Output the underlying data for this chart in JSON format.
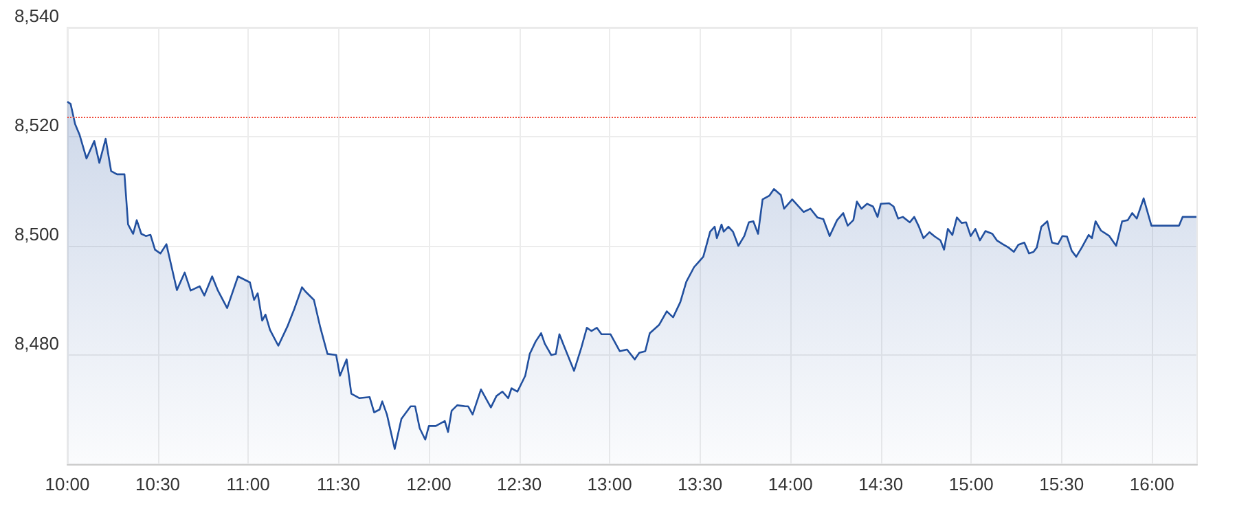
{
  "chart_data": {
    "type": "area",
    "x": [
      10.0,
      10.018,
      10.043,
      10.068,
      10.106,
      10.149,
      10.177,
      10.212,
      10.242,
      10.275,
      10.316,
      10.336,
      10.364,
      10.384,
      10.409,
      10.434,
      10.46,
      10.485,
      10.515,
      10.548,
      10.606,
      10.649,
      10.682,
      10.732,
      10.758,
      10.801,
      10.833,
      10.884,
      10.944,
      11.01,
      11.033,
      11.053,
      11.078,
      11.096,
      11.121,
      11.167,
      11.217,
      11.255,
      11.298,
      11.318,
      11.364,
      11.399,
      11.439,
      11.487,
      11.508,
      11.545,
      11.571,
      11.616,
      11.672,
      11.697,
      11.727,
      11.742,
      11.768,
      11.811,
      11.848,
      11.899,
      11.924,
      11.949,
      11.98,
      12.0,
      12.038,
      12.088,
      12.106,
      12.126,
      12.157,
      12.202,
      12.217,
      12.242,
      12.288,
      12.343,
      12.374,
      12.407,
      12.439,
      12.457,
      12.49,
      12.533,
      12.558,
      12.591,
      12.621,
      12.641,
      12.677,
      12.702,
      12.722,
      12.747,
      12.803,
      12.843,
      12.874,
      12.899,
      12.929,
      12.955,
      13.005,
      13.056,
      13.096,
      13.139,
      13.164,
      13.197,
      13.222,
      13.273,
      13.316,
      13.351,
      13.391,
      13.424,
      13.467,
      13.518,
      13.556,
      13.581,
      13.593,
      13.619,
      13.631,
      13.657,
      13.682,
      13.712,
      13.745,
      13.77,
      13.795,
      13.821,
      13.846,
      13.884,
      13.909,
      13.947,
      13.965,
      14.01,
      14.073,
      14.111,
      14.149,
      14.182,
      14.217,
      14.258,
      14.292,
      14.317,
      14.348,
      14.368,
      14.393,
      14.424,
      14.457,
      14.482,
      14.5,
      14.546,
      14.571,
      14.596,
      14.622,
      14.66,
      14.685,
      14.711,
      14.736,
      14.769,
      14.799,
      14.83,
      14.85,
      14.871,
      14.896,
      14.921,
      14.947,
      14.972,
      14.997,
      15.023,
      15.048,
      15.079,
      15.117,
      15.142,
      15.175,
      15.206,
      15.236,
      15.261,
      15.294,
      15.32,
      15.345,
      15.363,
      15.388,
      15.421,
      15.447,
      15.48,
      15.505,
      15.53,
      15.556,
      15.581,
      15.612,
      15.65,
      15.668,
      15.688,
      15.718,
      15.764,
      15.802,
      15.835,
      15.866,
      15.891,
      15.916,
      15.954,
      15.997,
      16.15,
      16.17,
      16.246
    ],
    "series": [
      {
        "color": "#22509f",
        "values": [
          8526.4,
          8526,
          8522.3,
          8520.3,
          8516,
          8519.2,
          8515.2,
          8519.6,
          8513.7,
          8513.1,
          8513.1,
          8503.9,
          8502.2,
          8504.7,
          8502.2,
          8501.8,
          8502,
          8499.3,
          8498.6,
          8500.3,
          8491.9,
          8495.1,
          8491.8,
          8492.6,
          8490.9,
          8494.4,
          8491.8,
          8488.6,
          8494.4,
          8493.3,
          8490.1,
          8491.3,
          8486.3,
          8487.4,
          8484.6,
          8481.7,
          8485.2,
          8488.4,
          8492.4,
          8491.6,
          8490.1,
          8485.1,
          8480.2,
          8480,
          8476.2,
          8479.2,
          8472.9,
          8472.1,
          8472.3,
          8469.5,
          8470,
          8471.5,
          8469.1,
          8462.8,
          8468.3,
          8470.6,
          8470.6,
          8466.6,
          8464.5,
          8467,
          8467,
          8467.9,
          8465.9,
          8469.8,
          8470.8,
          8470.6,
          8470.6,
          8469.1,
          8473.7,
          8470.4,
          8472.5,
          8473.3,
          8472.1,
          8473.9,
          8473.3,
          8476.2,
          8480.2,
          8482.5,
          8484,
          8482.1,
          8480,
          8480.2,
          8483.8,
          8481.7,
          8477.1,
          8481.3,
          8485,
          8484.4,
          8485,
          8483.8,
          8483.8,
          8480.7,
          8481,
          8479.2,
          8480.4,
          8480.7,
          8484,
          8485.5,
          8488,
          8486.9,
          8489.7,
          8493.4,
          8496.1,
          8498,
          8502.6,
          8503.5,
          8501.4,
          8503.9,
          8502.6,
          8503.5,
          8502.6,
          8500,
          8501.8,
          8504.3,
          8504.5,
          8502.2,
          8508.5,
          8509.2,
          8510.4,
          8509.3,
          8506.8,
          8508.5,
          8506.2,
          8506.8,
          8505.2,
          8504.9,
          8501.8,
          8504.7,
          8506,
          8503.7,
          8504.7,
          8508.1,
          8506.8,
          8507.7,
          8507.2,
          8505.3,
          8507.7,
          8507.8,
          8507.2,
          8505,
          8505.3,
          8504.3,
          8505.3,
          8503.5,
          8501.4,
          8502.5,
          8501.7,
          8501,
          8499.3,
          8503.1,
          8502,
          8505.2,
          8504.2,
          8504.3,
          8501.8,
          8503.1,
          8501,
          8502.7,
          8502.2,
          8501,
          8500.3,
          8499.7,
          8498.9,
          8500.2,
          8500.6,
          8498.6,
          8498.9,
          8499.7,
          8503.5,
          8504.5,
          8500.6,
          8500.3,
          8501.8,
          8501.7,
          8499.1,
          8498,
          8499.7,
          8502,
          8501.4,
          8504.5,
          8502.8,
          8501.8,
          8500,
          8504.5,
          8504.7,
          8506,
          8505,
          8508.7,
          8503.7,
          8503.7,
          8505.3,
          8505.3
        ]
      }
    ],
    "xlim": [
      10,
      16.25
    ],
    "xticks": [
      {
        "value": 10,
        "label": "10:00"
      },
      {
        "value": 10.5,
        "label": "10:30"
      },
      {
        "value": 11,
        "label": "11:00"
      },
      {
        "value": 11.5,
        "label": "11:30"
      },
      {
        "value": 12,
        "label": "12:00"
      },
      {
        "value": 12.5,
        "label": "12:30"
      },
      {
        "value": 13,
        "label": "13:00"
      },
      {
        "value": 13.5,
        "label": "13:30"
      },
      {
        "value": 14,
        "label": "14:00"
      },
      {
        "value": 14.5,
        "label": "14:30"
      },
      {
        "value": 15,
        "label": "15:00"
      },
      {
        "value": 15.5,
        "label": "15:30"
      },
      {
        "value": 16,
        "label": "16:00"
      }
    ],
    "ylim": [
      8460,
      8540
    ],
    "yticks": [
      {
        "value": 8480,
        "label": "8,480"
      },
      {
        "value": 8500,
        "label": "8,500"
      },
      {
        "value": 8520,
        "label": "8,520"
      },
      {
        "value": 8540,
        "label": "8,540"
      }
    ],
    "ref_lines": [
      {
        "axis": "y",
        "value": 8523.5,
        "color": "#f04a3a",
        "line_style": "dotted"
      }
    ],
    "grid": true
  }
}
